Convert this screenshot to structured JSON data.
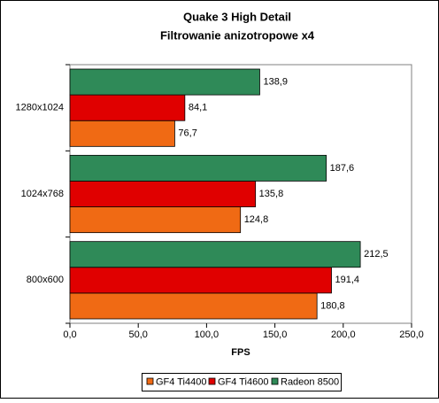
{
  "chart_data": {
    "type": "hbar",
    "title": "Quake 3 High Detail",
    "subtitle": "Filtrowanie anizotropowe x4",
    "x_label": "FPS",
    "categories": [
      "1280x1024",
      "1024x768",
      "800x600"
    ],
    "series": [
      {
        "name": "GF4 Ti4400",
        "color": "#f06a14",
        "values": [
          76.7,
          124.8,
          180.8
        ],
        "value_labels": [
          "76,7",
          "124,8",
          "180,8"
        ]
      },
      {
        "name": "GF4 Ti4600",
        "color": "#e00000",
        "values": [
          84.1,
          135.8,
          191.4
        ],
        "value_labels": [
          "84,1",
          "135,8",
          "191,4"
        ]
      },
      {
        "name": "Radeon 8500",
        "color": "#2f8a58",
        "values": [
          138.9,
          187.6,
          212.5
        ],
        "value_labels": [
          "138,9",
          "187,6",
          "212,5"
        ]
      }
    ],
    "xlim": [
      0,
      250
    ],
    "xticks": [
      {
        "value": 0,
        "label": "0,0"
      },
      {
        "value": 50,
        "label": "50,0"
      },
      {
        "value": 100,
        "label": "100,0"
      },
      {
        "value": 150,
        "label": "150,0"
      },
      {
        "value": 200,
        "label": "200,0"
      },
      {
        "value": 250,
        "label": "250,0"
      }
    ],
    "legend": "bottom"
  }
}
